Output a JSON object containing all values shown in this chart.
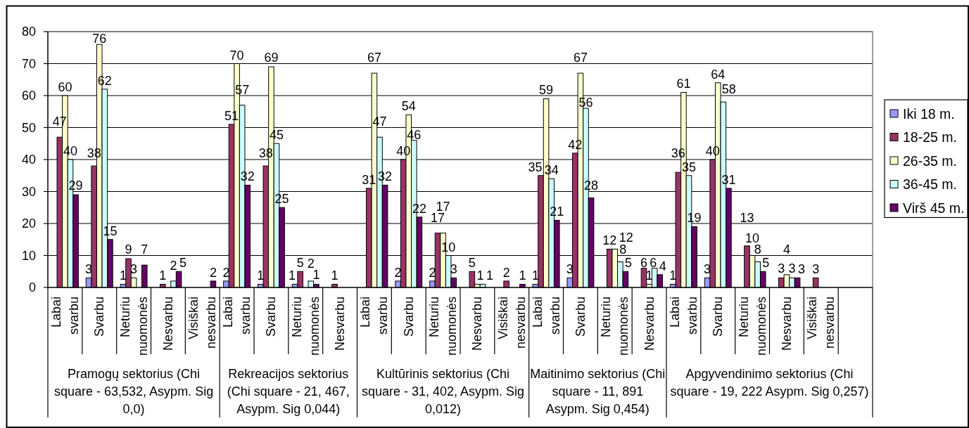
{
  "chart_data": {
    "type": "bar",
    "categories": [
      "Labai svarbu",
      "Svarbu",
      "Neturiu nuomonės",
      "Nesvarbu",
      "Visiškai nesvarbu",
      "Labai svarbu",
      "Svarbu",
      "Neturiu nuomonės",
      "Nesvarbu",
      "Labai svarbu",
      "Svarbu",
      "Neturiu nuomonės",
      "Nesvarbu",
      "Visiškai nesvarbu",
      "Labai svarbu",
      "Svarbu",
      "Neturiu nuomonės",
      "Nesvarbu",
      "Labai svarbu",
      "Svarbu",
      "Neturiu nuomonės",
      "Nesvarbu",
      "Visiškai nesvarbu",
      null
    ],
    "series": [
      {
        "name": "Iki 18 m.",
        "color": "#9999ff",
        "values": [
          null,
          3,
          1,
          null,
          null,
          2,
          1,
          1,
          null,
          null,
          2,
          2,
          null,
          null,
          1,
          3,
          null,
          null,
          1,
          3,
          null,
          null,
          null,
          null
        ]
      },
      {
        "name": "18-25 m.",
        "color": "#993366",
        "values": [
          47,
          38,
          9,
          1,
          null,
          51,
          38,
          5,
          1,
          31,
          40,
          17,
          5,
          2,
          35,
          42,
          12,
          6,
          36,
          40,
          13,
          3,
          3,
          null
        ]
      },
      {
        "name": "26-35 m.",
        "color": "#ffffcc",
        "values": [
          60,
          76,
          3,
          null,
          null,
          70,
          69,
          null,
          null,
          67,
          54,
          17,
          1,
          null,
          59,
          67,
          12,
          1,
          61,
          64,
          10,
          4,
          null,
          null
        ]
      },
      {
        "name": "36-45 m.",
        "color": "#ccffff",
        "values": [
          40,
          62,
          null,
          2,
          null,
          57,
          45,
          2,
          null,
          47,
          46,
          10,
          1,
          null,
          34,
          56,
          8,
          6,
          35,
          58,
          8,
          3,
          null,
          null
        ]
      },
      {
        "name": "Virš 45 m.",
        "color": "#660066",
        "values": [
          29,
          15,
          7,
          5,
          2,
          32,
          25,
          1,
          null,
          32,
          22,
          3,
          null,
          1,
          21,
          28,
          5,
          4,
          19,
          31,
          5,
          3,
          null,
          null
        ]
      }
    ],
    "ylim": [
      0,
      80
    ],
    "yticks": [
      0,
      10,
      20,
      30,
      40,
      50,
      60,
      70,
      80
    ],
    "grid": "y",
    "legend": "right",
    "data_labels": true,
    "annotations": [
      "Pramogų sektorius (Chi\nsquare - 63,532, Asypm. Sig\n0,0)",
      "Rekreacijos sektorius\n(Chi square - 21, 467,\nAsypm. Sig 0,044)",
      "Kultūrinis sektorius (Chi\nsquare - 31, 402, Asypm. Sig\n0,012)",
      "Maitinimo sektorius (Chi\nsquare - 11, 891\nAsypm. Sig 0,454)",
      "Apgyvendinimo sektorius (Chi\nsquare - 19, 222 Asypm. Sig 0,257)"
    ]
  }
}
